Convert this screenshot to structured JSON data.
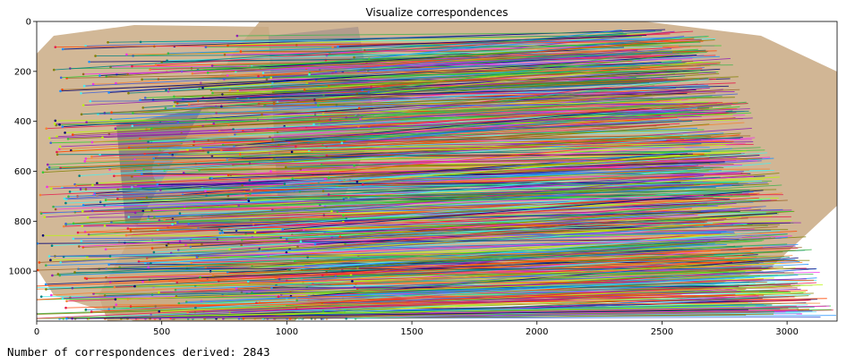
{
  "chart_data": {
    "type": "scatter",
    "title": "Visualize correspondences",
    "xlabel": "",
    "ylabel": "",
    "xlim": [
      0,
      3200
    ],
    "ylim": [
      1200,
      0
    ],
    "x_ticks": [
      0,
      500,
      1000,
      1500,
      2000,
      2500,
      3000
    ],
    "y_ticks": [
      0,
      200,
      400,
      600,
      800,
      1000
    ],
    "grid": false,
    "legend": "none",
    "image_content": "two side-by-side photographs of a sandstone slab with a painted figure; the left image is rotated relative to the right; thousands of colored lines connect matched keypoints between them",
    "num_correspondences": 2843
  },
  "output": {
    "text": "Number of correspondences derived: 2843"
  },
  "colors": {
    "axis": "#000000",
    "stone": "#c9a982",
    "line_palette": [
      "#e6194b",
      "#3cb44b",
      "#4363d8",
      "#f58231",
      "#911eb4",
      "#46f0f0",
      "#f032e6",
      "#bcf60c",
      "#008080",
      "#9a6324",
      "#000075",
      "#808000",
      "#ff4500",
      "#1e90ff",
      "#32cd32"
    ]
  }
}
